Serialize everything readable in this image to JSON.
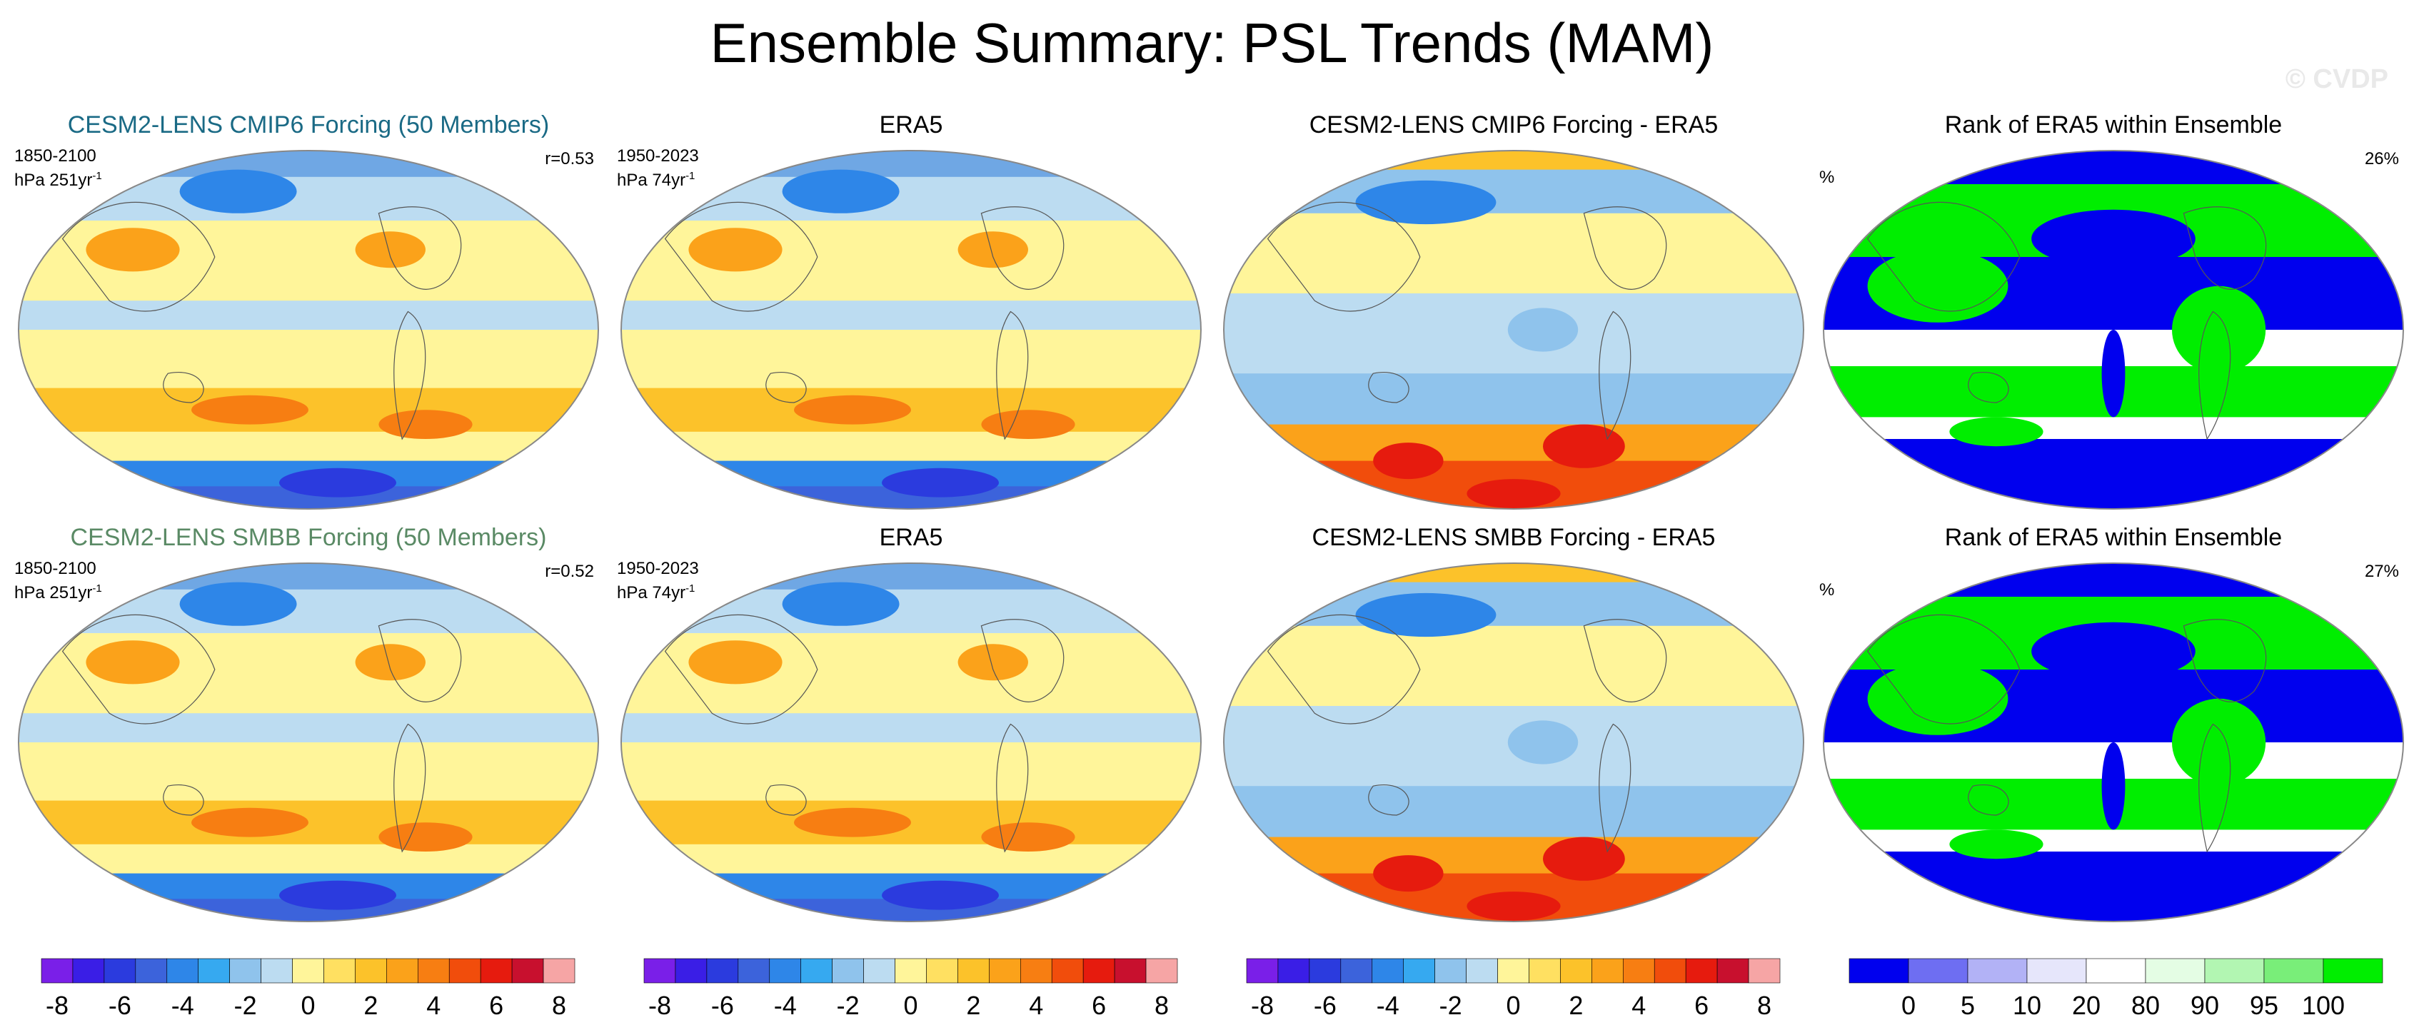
{
  "figure": {
    "title": "Ensemble Summary: PSL Trends (MAM)",
    "watermark": "© CVDP"
  },
  "panels": [
    {
      "id": "r1c1",
      "title": "CESM2-LENS CMIP6 Forcing (50 Members)",
      "title_color": "#1a6a85",
      "left_line1": "1850-2100",
      "left_line2_prefix": "hPa 251yr",
      "left_line2_sup": "-1",
      "right_text": "r=0.53",
      "kind": "trend"
    },
    {
      "id": "r1c2",
      "title": "ERA5",
      "title_color": "#000000",
      "left_line1": "1950-2023",
      "left_line2_prefix": "hPa 74yr",
      "left_line2_sup": "-1",
      "right_text": "",
      "kind": "trend"
    },
    {
      "id": "r1c3",
      "title": "CESM2-LENS CMIP6 Forcing - ERA5",
      "title_color": "#000000",
      "left_line1": "",
      "left_line2_prefix": "",
      "left_line2_sup": "",
      "right_text": "",
      "kind": "diff"
    },
    {
      "id": "r1c4",
      "title": "Rank of ERA5 within Ensemble",
      "title_color": "#000000",
      "left_line1": "%",
      "left_line2_prefix": "",
      "left_line2_sup": "",
      "right_text": "26%",
      "kind": "rank"
    },
    {
      "id": "r2c1",
      "title": "CESM2-LENS SMBB Forcing (50 Members)",
      "title_color": "#5a8a65",
      "left_line1": "1850-2100",
      "left_line2_prefix": "hPa 251yr",
      "left_line2_sup": "-1",
      "right_text": "r=0.52",
      "kind": "trend"
    },
    {
      "id": "r2c2",
      "title": "ERA5",
      "title_color": "#000000",
      "left_line1": "1950-2023",
      "left_line2_prefix": "hPa 74yr",
      "left_line2_sup": "-1",
      "right_text": "",
      "kind": "trend"
    },
    {
      "id": "r2c3",
      "title": "CESM2-LENS SMBB Forcing - ERA5",
      "title_color": "#000000",
      "left_line1": "",
      "left_line2_prefix": "",
      "left_line2_sup": "",
      "right_text": "",
      "kind": "diff"
    },
    {
      "id": "r2c4",
      "title": "Rank of ERA5 within Ensemble",
      "title_color": "#000000",
      "left_line1": "%",
      "left_line2_prefix": "",
      "left_line2_sup": "",
      "right_text": "27%",
      "kind": "rank"
    }
  ],
  "chart_data": [
    {
      "type": "heatmap",
      "name_ref": "PSL trend colorbar",
      "levels": [
        -8,
        -7,
        -6,
        -5,
        -4,
        -3,
        -2,
        -1,
        0,
        1,
        2,
        3,
        4,
        5,
        6,
        7,
        8
      ],
      "tick_labels": [
        "-8",
        "-6",
        "-4",
        "-2",
        "0",
        "2",
        "4",
        "6",
        "8"
      ],
      "colors": [
        "#7a1fe8",
        "#3a1ee6",
        "#2b3bde",
        "#3c63db",
        "#2e86e8",
        "#36a9f0",
        "#8fc3ec",
        "#bcdcf1",
        "#fff59a",
        "#ffe061",
        "#fcc22a",
        "#fba21a",
        "#f77e12",
        "#f14d0c",
        "#e61b0e",
        "#c8102e",
        "#f6a5a5"
      ]
    },
    {
      "type": "heatmap",
      "name_ref": "Rank colorbar",
      "levels": [
        0,
        5,
        10,
        20,
        80,
        90,
        95,
        100
      ],
      "tick_labels": [
        "0",
        "5",
        "10",
        "20",
        "80",
        "90",
        "95",
        "100"
      ],
      "colors": [
        "#0000ee",
        "#6e6ef2",
        "#b2b2f6",
        "#e6e6fb",
        "#ffffff",
        "#e4fde4",
        "#b2f6b2",
        "#79ee79",
        "#00ee00"
      ]
    }
  ]
}
